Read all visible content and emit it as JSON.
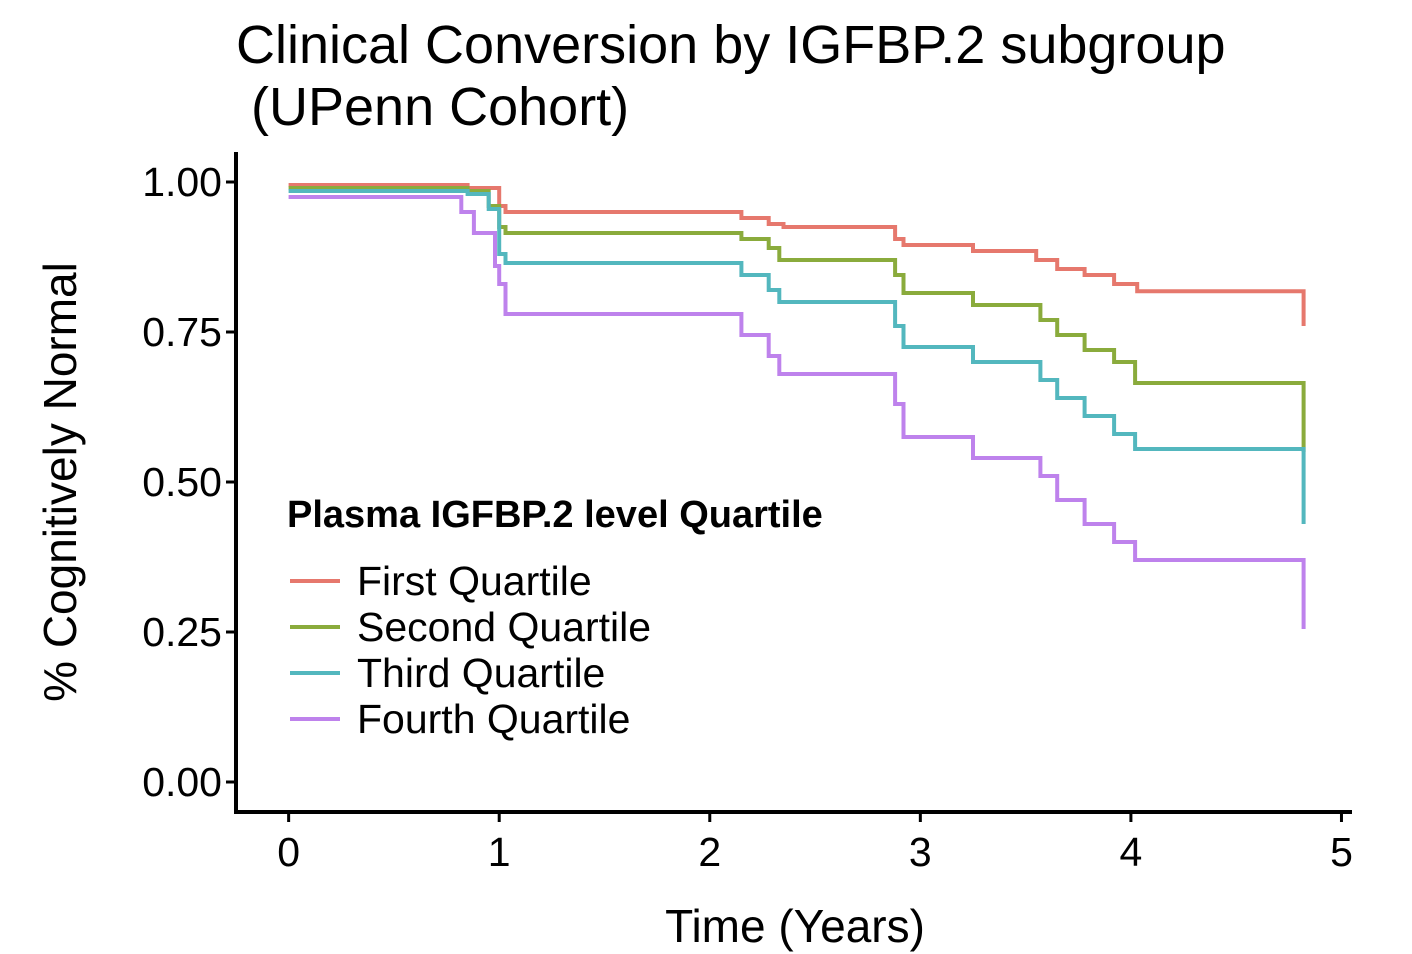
{
  "chart_data": {
    "type": "line",
    "title_lines": [
      "Clinical Conversion by IGFBP.2 subgroup",
      " (UPenn Cohort)"
    ],
    "xlabel": "Time (Years)",
    "ylabel": "% Cognitively Normal",
    "xlim": [
      -0.25,
      5.05
    ],
    "ylim": [
      -0.05,
      1.05
    ],
    "xticks": [
      0,
      1,
      2,
      3,
      4,
      5
    ],
    "xtick_labels": [
      "0",
      "1",
      "2",
      "3",
      "4",
      "5"
    ],
    "yticks": [
      0,
      0.25,
      0.5,
      0.75,
      1
    ],
    "ytick_labels": [
      "0.00",
      "0.25",
      "0.50",
      "0.75",
      "1.00"
    ],
    "grid": false,
    "legend": {
      "title": "Plasma IGFBP.2 level Quartile",
      "placement": "inside-bottom-left"
    },
    "step": true,
    "series": [
      {
        "name": "First Quartile",
        "color": "#E6786D",
        "points": [
          [
            0,
            0.995
          ],
          [
            0.85,
            0.99
          ],
          [
            1.0,
            0.96
          ],
          [
            1.03,
            0.95
          ],
          [
            2.15,
            0.94
          ],
          [
            2.28,
            0.93
          ],
          [
            2.35,
            0.925
          ],
          [
            2.88,
            0.905
          ],
          [
            2.92,
            0.895
          ],
          [
            3.25,
            0.885
          ],
          [
            3.55,
            0.87
          ],
          [
            3.65,
            0.855
          ],
          [
            3.78,
            0.845
          ],
          [
            3.92,
            0.83
          ],
          [
            4.03,
            0.818
          ],
          [
            4.82,
            0.818
          ],
          [
            4.82,
            0.76
          ]
        ]
      },
      {
        "name": "Second Quartile",
        "color": "#8AAB3C",
        "points": [
          [
            0,
            0.99
          ],
          [
            0.85,
            0.985
          ],
          [
            0.95,
            0.96
          ],
          [
            1.0,
            0.925
          ],
          [
            1.03,
            0.915
          ],
          [
            2.15,
            0.905
          ],
          [
            2.28,
            0.89
          ],
          [
            2.33,
            0.87
          ],
          [
            2.88,
            0.845
          ],
          [
            2.92,
            0.815
          ],
          [
            3.25,
            0.795
          ],
          [
            3.57,
            0.77
          ],
          [
            3.65,
            0.745
          ],
          [
            3.78,
            0.72
          ],
          [
            3.92,
            0.7
          ],
          [
            4.02,
            0.665
          ],
          [
            4.82,
            0.665
          ],
          [
            4.82,
            0.55
          ]
        ]
      },
      {
        "name": "Third Quartile",
        "color": "#53B7BE",
        "points": [
          [
            0,
            0.985
          ],
          [
            0.85,
            0.98
          ],
          [
            0.95,
            0.955
          ],
          [
            1.0,
            0.88
          ],
          [
            1.03,
            0.865
          ],
          [
            2.15,
            0.845
          ],
          [
            2.28,
            0.82
          ],
          [
            2.33,
            0.8
          ],
          [
            2.88,
            0.76
          ],
          [
            2.92,
            0.725
          ],
          [
            3.25,
            0.7
          ],
          [
            3.57,
            0.67
          ],
          [
            3.65,
            0.64
          ],
          [
            3.78,
            0.61
          ],
          [
            3.92,
            0.58
          ],
          [
            4.02,
            0.555
          ],
          [
            4.82,
            0.555
          ],
          [
            4.82,
            0.43
          ]
        ]
      },
      {
        "name": "Fourth Quartile",
        "color": "#BE82EC",
        "points": [
          [
            0,
            0.975
          ],
          [
            0.82,
            0.95
          ],
          [
            0.88,
            0.915
          ],
          [
            0.98,
            0.86
          ],
          [
            1.0,
            0.83
          ],
          [
            1.03,
            0.78
          ],
          [
            2.15,
            0.745
          ],
          [
            2.28,
            0.71
          ],
          [
            2.33,
            0.68
          ],
          [
            2.88,
            0.63
          ],
          [
            2.92,
            0.575
          ],
          [
            3.25,
            0.54
          ],
          [
            3.57,
            0.51
          ],
          [
            3.65,
            0.47
          ],
          [
            3.78,
            0.43
          ],
          [
            3.92,
            0.4
          ],
          [
            4.02,
            0.37
          ],
          [
            4.82,
            0.37
          ],
          [
            4.82,
            0.255
          ]
        ]
      }
    ]
  }
}
